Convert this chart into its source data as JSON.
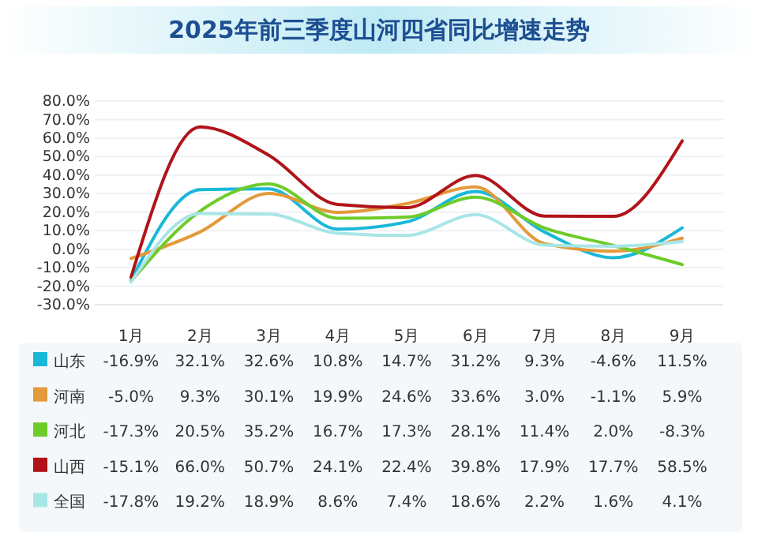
{
  "chart_data": {
    "type": "line",
    "title": "2025年前三季度山河四省同比增速走势",
    "categories": [
      "1月",
      "2月",
      "3月",
      "4月",
      "5月",
      "6月",
      "7月",
      "8月",
      "9月"
    ],
    "ylim": [
      -30,
      80
    ],
    "yticks": [
      {
        "value": -30,
        "label": "-30.0%"
      },
      {
        "value": -20,
        "label": "-20.0%"
      },
      {
        "value": -10,
        "label": "-10.0%"
      },
      {
        "value": 0,
        "label": "0.0%"
      },
      {
        "value": 10,
        "label": "10.0%"
      },
      {
        "value": 20,
        "label": "20.0%"
      },
      {
        "value": 30,
        "label": "30.0%"
      },
      {
        "value": 40,
        "label": "40.0%"
      },
      {
        "value": 50,
        "label": "50.0%"
      },
      {
        "value": 60,
        "label": "60.0%"
      },
      {
        "value": 70,
        "label": "70.0%"
      },
      {
        "value": 80,
        "label": "80.0%"
      }
    ],
    "grid": "y",
    "legend": "bottom",
    "marker": "none",
    "line_style": "solid",
    "series": [
      {
        "name": "山东",
        "color": "#1ab8d8",
        "values": [
          -16.9,
          32.1,
          32.6,
          10.8,
          14.7,
          31.2,
          9.3,
          -4.6,
          11.5
        ],
        "value_labels": [
          "-16.9%",
          "32.1%",
          "32.6%",
          "10.8%",
          "14.7%",
          "31.2%",
          "9.3%",
          "-4.6%",
          "11.5%"
        ]
      },
      {
        "name": "河南",
        "color": "#e39a3a",
        "values": [
          -5.0,
          9.3,
          30.1,
          19.9,
          24.6,
          33.6,
          3.0,
          -1.1,
          5.9
        ],
        "value_labels": [
          "-5.0%",
          "9.3%",
          "30.1%",
          "19.9%",
          "24.6%",
          "33.6%",
          "3.0%",
          "-1.1%",
          "5.9%"
        ]
      },
      {
        "name": "河北",
        "color": "#6dcc2a",
        "values": [
          -17.3,
          20.5,
          35.2,
          16.7,
          17.3,
          28.1,
          11.4,
          2.0,
          -8.3
        ],
        "value_labels": [
          "-17.3%",
          "20.5%",
          "35.2%",
          "16.7%",
          "17.3%",
          "28.1%",
          "11.4%",
          "2.0%",
          "-8.3%"
        ]
      },
      {
        "name": "山西",
        "color": "#b0141a",
        "values": [
          -15.1,
          66.0,
          50.7,
          24.1,
          22.4,
          39.8,
          17.9,
          17.7,
          58.5
        ],
        "value_labels": [
          "-15.1%",
          "66.0%",
          "50.7%",
          "24.1%",
          "22.4%",
          "39.8%",
          "17.9%",
          "17.7%",
          "58.5%"
        ]
      },
      {
        "name": "全国",
        "color": "#a8e6e6",
        "values": [
          -17.8,
          19.2,
          18.9,
          8.6,
          7.4,
          18.6,
          2.2,
          1.6,
          4.1
        ],
        "value_labels": [
          "-17.8%",
          "19.2%",
          "18.9%",
          "8.6%",
          "7.4%",
          "18.6%",
          "2.2%",
          "1.6%",
          "4.1%"
        ]
      }
    ]
  }
}
